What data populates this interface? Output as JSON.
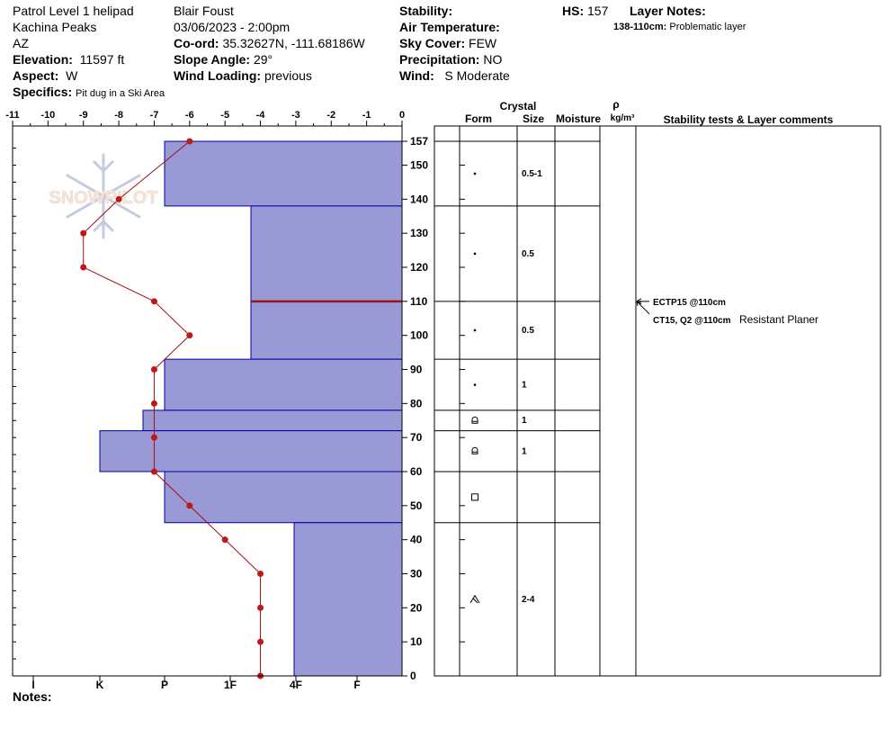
{
  "header": {
    "location": "Patrol Level 1 helipad",
    "range": "Kachina Peaks",
    "state": "AZ",
    "elevation_label": "Elevation:",
    "elevation": "11597 ft",
    "aspect_label": "Aspect:",
    "aspect": "W",
    "specifics_label": "Specifics:",
    "specifics": "Pit dug in a Ski Area",
    "observer": "Blair Foust",
    "datetime": "03/06/2023 - 2:00pm",
    "coord_label": "Co-ord:",
    "coord": "35.32627N, -111.68186W",
    "slope_label": "Slope Angle:",
    "slope": "29°",
    "wind_loading_label": "Wind Loading:",
    "wind_loading": "previous",
    "stability_label": "Stability:",
    "stability": "",
    "air_temp_label": "Air Temperature:",
    "sky_label": "Sky Cover:",
    "sky": "FEW",
    "precip_label": "Precipitation:",
    "precip": "NO",
    "wind_label": "Wind:",
    "wind": "S Moderate",
    "hs_label": "HS:",
    "hs": "157",
    "layer_notes_label": "Layer Notes:",
    "layer_note_range": "138-110cm:",
    "layer_note_text": "Problematic layer",
    "notes_label": "Notes:"
  },
  "columns": {
    "crystal": "Crystal",
    "form": "Form",
    "size": "Size",
    "moisture": "Moisture",
    "rho": "ρ",
    "density_unit": "kg/m³",
    "stability": "Stability tests & Layer comments"
  },
  "watermark": "SNOWPILOT",
  "colors": {
    "hardness_fill": "#9999d6",
    "hardness_edge": "#0000a0",
    "temp_line": "#a01010",
    "temp_point": "#c01818",
    "layer_line": "#a01010"
  },
  "chart_data": {
    "type": "snow-profile",
    "temperature_axis": {
      "ticks": [
        "-11",
        "-10",
        "-9",
        "-8",
        "-7",
        "-6",
        "-5",
        "-4",
        "-3",
        "-2",
        "-1",
        "0"
      ],
      "range": [
        -11,
        0
      ]
    },
    "depth_axis": {
      "ticks": [
        "157",
        "150",
        "140",
        "130",
        "120",
        "110",
        "100",
        "90",
        "80",
        "70",
        "60",
        "50",
        "40",
        "30",
        "20",
        "10",
        "0"
      ],
      "range": [
        0,
        157
      ]
    },
    "hardness_axis": {
      "labels": [
        "I",
        "K",
        "P",
        "1F",
        "4F",
        "F"
      ]
    },
    "temperature_profile": [
      {
        "depth": 157,
        "temp": -6
      },
      {
        "depth": 140,
        "temp": -8
      },
      {
        "depth": 130,
        "temp": -9
      },
      {
        "depth": 120,
        "temp": -9
      },
      {
        "depth": 110,
        "temp": -7
      },
      {
        "depth": 100,
        "temp": -6
      },
      {
        "depth": 90,
        "temp": -7
      },
      {
        "depth": 80,
        "temp": -7
      },
      {
        "depth": 70,
        "temp": -7
      },
      {
        "depth": 60,
        "temp": -7
      },
      {
        "depth": 50,
        "temp": -6
      },
      {
        "depth": 40,
        "temp": -5
      },
      {
        "depth": 30,
        "temp": -4
      },
      {
        "depth": 20,
        "temp": -4
      },
      {
        "depth": 10,
        "temp": -4
      },
      {
        "depth": 0,
        "temp": -4
      }
    ],
    "hardness_layers": [
      {
        "top": 157,
        "bottom": 138,
        "hardness": "P"
      },
      {
        "top": 138,
        "bottom": 110,
        "hardness": "4F-"
      },
      {
        "top": 110,
        "bottom": 93,
        "hardness": "4F-"
      },
      {
        "top": 93,
        "bottom": 78,
        "hardness": "P"
      },
      {
        "top": 78,
        "bottom": 72,
        "hardness": "P+"
      },
      {
        "top": 72,
        "bottom": 60,
        "hardness": "K-"
      },
      {
        "top": 60,
        "bottom": 45,
        "hardness": "P"
      },
      {
        "top": 45,
        "bottom": 0,
        "hardness": "4F"
      }
    ],
    "crystal_layers": [
      {
        "top": 157,
        "bottom": 138,
        "form": "dot",
        "size": "0.5-1"
      },
      {
        "top": 138,
        "bottom": 110,
        "form": "dot",
        "size": "0.5"
      },
      {
        "top": 110,
        "bottom": 93,
        "form": "dot",
        "size": "0.5"
      },
      {
        "top": 93,
        "bottom": 78,
        "form": "dot",
        "size": "1"
      },
      {
        "top": 78,
        "bottom": 72,
        "form": "rounded-facet",
        "size": "1"
      },
      {
        "top": 72,
        "bottom": 60,
        "form": "rounded-facet",
        "size": "1"
      },
      {
        "top": 60,
        "bottom": 45,
        "form": "facet",
        "size": ""
      },
      {
        "top": 45,
        "bottom": 0,
        "form": "depth-hoar",
        "size": "2-4"
      }
    ],
    "problem_layer_depth": 110,
    "stability_tests": [
      {
        "depth": 110,
        "text": "ECTP15 @110cm",
        "comment": ""
      },
      {
        "depth": 110,
        "text": "CT15, Q2 @110cm",
        "comment": "Resistant Planer"
      }
    ]
  }
}
